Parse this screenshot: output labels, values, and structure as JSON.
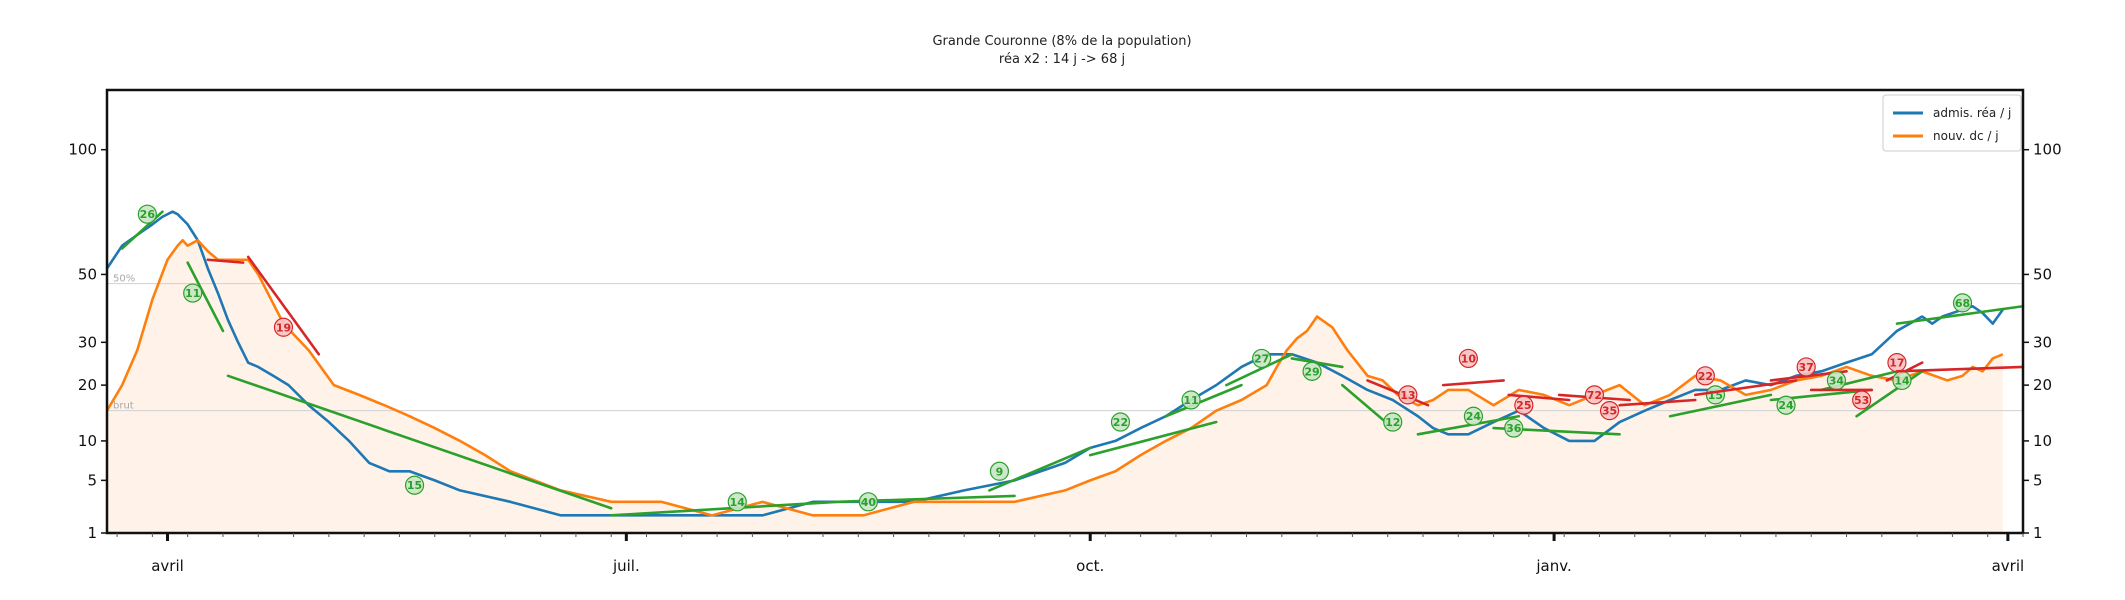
{
  "chart_data": {
    "type": "line",
    "title": "Grande Couronne (8% de la population)",
    "subtitle": "réa x2 : 14 j -> 68 j",
    "y_scale": "sqrt",
    "ylim": [
      1,
      130
    ],
    "yticks": [
      1,
      5,
      10,
      20,
      30,
      50,
      100
    ],
    "y_ticks_both_sides": true,
    "x_domain_days": [
      0,
      380
    ],
    "x_ticks": [
      {
        "label": "avril",
        "day": 12
      },
      {
        "label": "juil.",
        "day": 103
      },
      {
        "label": "oct.",
        "day": 195
      },
      {
        "label": "janv.",
        "day": 287
      },
      {
        "label": "avril",
        "day": 377
      }
    ],
    "legend": {
      "position": "top-right",
      "entries": [
        {
          "label": "admis. réa / j",
          "color": "#1f77b4"
        },
        {
          "label": "nouv. dc / j",
          "color": "#ff7f0e"
        }
      ]
    },
    "reference_labels": [
      {
        "label": "50%",
        "value": 47
      },
      {
        "label": "brut",
        "value": 15
      }
    ],
    "series": [
      {
        "name": "admis. réa / j",
        "color": "#1f77b4",
        "x": [
          0,
          3,
          6,
          9,
          11,
          13,
          14,
          16,
          18,
          20,
          22,
          24,
          26,
          28,
          30,
          33,
          36,
          40,
          44,
          48,
          52,
          56,
          60,
          65,
          70,
          80,
          90,
          100,
          110,
          120,
          130,
          140,
          150,
          160,
          170,
          180,
          190,
          195,
          200,
          205,
          210,
          215,
          220,
          225,
          230,
          235,
          240,
          245,
          250,
          255,
          260,
          263,
          266,
          270,
          275,
          280,
          285,
          290,
          295,
          300,
          305,
          310,
          315,
          320,
          325,
          330,
          335,
          340,
          345,
          350,
          355,
          360,
          362,
          364,
          366,
          368,
          370,
          372,
          374,
          376
        ],
        "values": [
          52,
          60,
          64,
          68,
          71,
          73,
          72,
          68,
          62,
          52,
          44,
          36,
          30,
          25,
          24,
          22,
          20,
          16,
          13,
          10,
          7,
          6,
          6,
          5,
          4,
          3,
          2,
          2,
          2,
          2,
          2,
          3,
          3,
          3,
          4,
          5,
          7,
          9,
          10,
          12,
          14,
          17,
          20,
          24,
          27,
          27,
          25,
          22,
          19,
          17,
          14,
          12,
          11,
          11,
          13,
          15,
          12,
          10,
          10,
          13,
          15,
          17,
          19,
          19,
          21,
          20,
          22,
          23,
          25,
          27,
          33,
          37,
          35,
          37,
          38,
          39,
          40,
          38,
          35,
          39
        ]
      },
      {
        "name": "nouv. dc / j",
        "color": "#ff7f0e",
        "x": [
          0,
          3,
          6,
          9,
          12,
          14,
          15,
          16,
          18,
          20,
          22,
          25,
          28,
          30,
          35,
          40,
          45,
          50,
          55,
          60,
          65,
          70,
          75,
          80,
          90,
          100,
          110,
          120,
          130,
          140,
          150,
          160,
          170,
          180,
          190,
          195,
          200,
          205,
          210,
          215,
          220,
          225,
          230,
          232,
          234,
          236,
          238,
          240,
          243,
          246,
          250,
          253,
          256,
          260,
          263,
          266,
          270,
          275,
          280,
          285,
          290,
          295,
          300,
          305,
          310,
          315,
          320,
          325,
          330,
          335,
          340,
          345,
          350,
          355,
          360,
          365,
          368,
          370,
          372,
          374,
          376
        ],
        "values": [
          15,
          20,
          28,
          42,
          55,
          60,
          62,
          60,
          62,
          58,
          55,
          55,
          55,
          50,
          35,
          28,
          20,
          18,
          16,
          14,
          12,
          10,
          8,
          6,
          4,
          3,
          3,
          2,
          3,
          2,
          2,
          3,
          3,
          3,
          4,
          5,
          6,
          8,
          10,
          12,
          15,
          17,
          20,
          24,
          28,
          31,
          33,
          37,
          34,
          28,
          22,
          21,
          18,
          16,
          17,
          19,
          19,
          16,
          19,
          18,
          16,
          18,
          20,
          16,
          18,
          22,
          21,
          18,
          19,
          21,
          22,
          24,
          22,
          21,
          23,
          21,
          22,
          24,
          23,
          26,
          27
        ]
      }
    ],
    "trend_segments": [
      {
        "color": "#2ca02c",
        "label": "26",
        "from": [
          3,
          59
        ],
        "to": [
          11,
          73
        ],
        "label_at": [
          8,
          72
        ]
      },
      {
        "color": "#2ca02c",
        "label": "11",
        "from": [
          16,
          54
        ],
        "to": [
          23,
          33
        ],
        "label_at": [
          17,
          44
        ]
      },
      {
        "color": "#d62728",
        "label": "",
        "from": [
          20,
          55
        ],
        "to": [
          27,
          54
        ],
        "label_at": null
      },
      {
        "color": "#d62728",
        "label": "19",
        "from": [
          28,
          56
        ],
        "to": [
          42,
          27
        ],
        "label_at": [
          35,
          34
        ]
      },
      {
        "color": "#2ca02c",
        "label": "15",
        "from": [
          24,
          22
        ],
        "to": [
          100,
          2.5
        ],
        "label_at": [
          61,
          4.5
        ]
      },
      {
        "color": "#2ca02c",
        "label": "14",
        "from": [
          100,
          2
        ],
        "to": [
          145,
          3
        ],
        "label_at": [
          125,
          3
        ]
      },
      {
        "color": "#2ca02c",
        "label": "40",
        "from": [
          145,
          3
        ],
        "to": [
          180,
          3.5
        ],
        "label_at": [
          151,
          3
        ]
      },
      {
        "color": "#2ca02c",
        "label": "9",
        "from": [
          175,
          4
        ],
        "to": [
          195,
          9
        ],
        "label_at": [
          177,
          6
        ]
      },
      {
        "color": "#2ca02c",
        "label": "22",
        "from": [
          195,
          8
        ],
        "to": [
          220,
          13
        ],
        "label_at": [
          201,
          13
        ]
      },
      {
        "color": "#2ca02c",
        "label": "11",
        "from": [
          210,
          14
        ],
        "to": [
          225,
          20
        ],
        "label_at": [
          215,
          17
        ]
      },
      {
        "color": "#2ca02c",
        "label": "27",
        "from": [
          222,
          20
        ],
        "to": [
          235,
          27
        ],
        "label_at": [
          229,
          26
        ]
      },
      {
        "color": "#2ca02c",
        "label": "29",
        "from": [
          235,
          26
        ],
        "to": [
          245,
          24
        ],
        "label_at": [
          239,
          23
        ]
      },
      {
        "color": "#2ca02c",
        "label": "12",
        "from": [
          245,
          20
        ],
        "to": [
          255,
          12
        ],
        "label_at": [
          255,
          13
        ]
      },
      {
        "color": "#d62728",
        "label": "13",
        "from": [
          250,
          21
        ],
        "to": [
          262,
          16
        ],
        "label_at": [
          258,
          18
        ]
      },
      {
        "color": "#d62728",
        "label": "10",
        "from": [
          265,
          20
        ],
        "to": [
          277,
          21
        ],
        "label_at": [
          270,
          26
        ]
      },
      {
        "color": "#2ca02c",
        "label": "24",
        "from": [
          260,
          11
        ],
        "to": [
          280,
          14
        ],
        "label_at": [
          271,
          14
        ]
      },
      {
        "color": "#2ca02c",
        "label": "36",
        "from": [
          275,
          12
        ],
        "to": [
          300,
          11
        ],
        "label_at": [
          279,
          12
        ]
      },
      {
        "color": "#d62728",
        "label": "25",
        "from": [
          278,
          18
        ],
        "to": [
          290,
          17
        ],
        "label_at": [
          281,
          16
        ]
      },
      {
        "color": "#d62728",
        "label": "72",
        "from": [
          288,
          18
        ],
        "to": [
          302,
          17
        ],
        "label_at": [
          295,
          18
        ]
      },
      {
        "color": "#d62728",
        "label": "35",
        "from": [
          300,
          16
        ],
        "to": [
          315,
          17
        ],
        "label_at": [
          298,
          15
        ]
      },
      {
        "color": "#2ca02c",
        "label": "15",
        "from": [
          310,
          14
        ],
        "to": [
          330,
          18
        ],
        "label_at": [
          319,
          18
        ]
      },
      {
        "color": "#d62728",
        "label": "22",
        "from": [
          315,
          18
        ],
        "to": [
          335,
          21
        ],
        "label_at": [
          317,
          22
        ]
      },
      {
        "color": "#d62728",
        "label": "37",
        "from": [
          330,
          21
        ],
        "to": [
          345,
          23
        ],
        "label_at": [
          337,
          24
        ]
      },
      {
        "color": "#2ca02c",
        "label": "24",
        "from": [
          330,
          17
        ],
        "to": [
          350,
          19
        ],
        "label_at": [
          333,
          16
        ]
      },
      {
        "color": "#2ca02c",
        "label": "34",
        "from": [
          340,
          19
        ],
        "to": [
          355,
          23
        ],
        "label_at": [
          343,
          21
        ]
      },
      {
        "color": "#d62728",
        "label": "53",
        "from": [
          338,
          19
        ],
        "to": [
          350,
          19
        ],
        "label_at": [
          348,
          17
        ]
      },
      {
        "color": "#d62728",
        "label": "17",
        "from": [
          353,
          21
        ],
        "to": [
          360,
          25
        ],
        "label_at": [
          355,
          25
        ]
      },
      {
        "color": "#2ca02c",
        "label": "14",
        "from": [
          347,
          14
        ],
        "to": [
          360,
          23
        ],
        "label_at": [
          356,
          21
        ]
      },
      {
        "color": "#2ca02c",
        "label": "68",
        "from": [
          355,
          35
        ],
        "to": [
          380,
          40
        ],
        "label_at": [
          368,
          41
        ]
      },
      {
        "color": "#d62728",
        "label": "",
        "from": [
          355,
          23
        ],
        "to": [
          380,
          24
        ],
        "label_at": null
      }
    ]
  }
}
